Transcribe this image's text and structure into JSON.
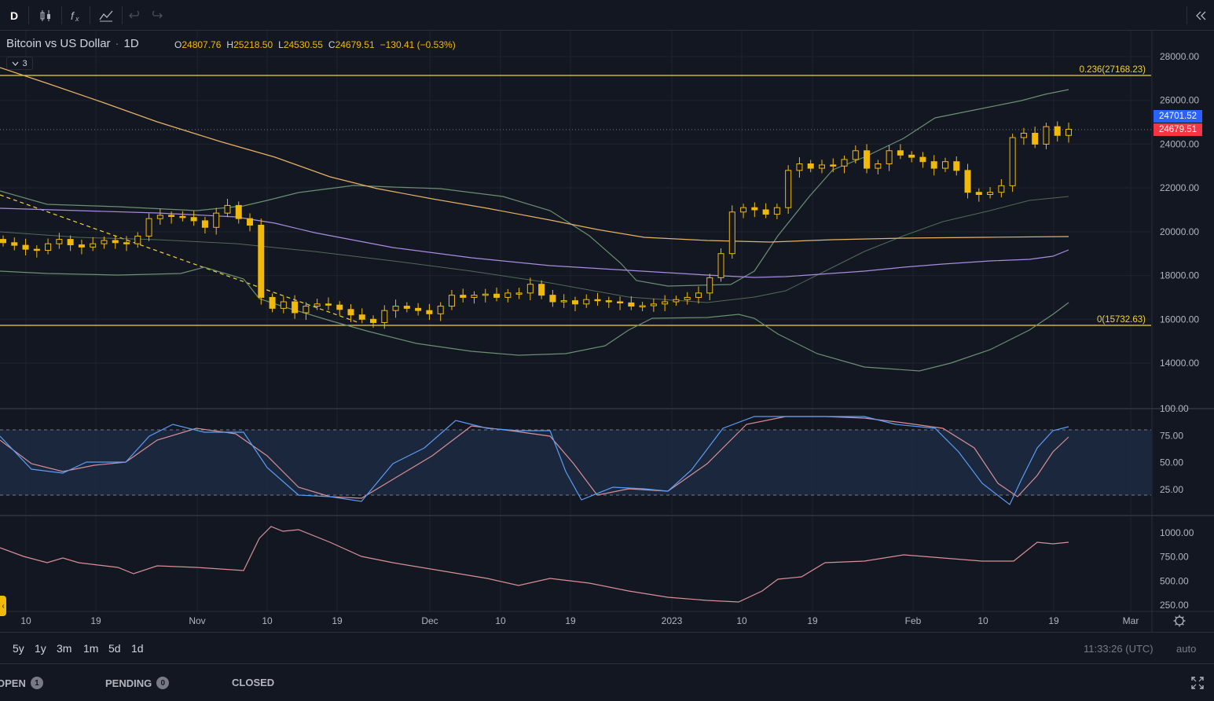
{
  "toolbar": {
    "interval_button": "D",
    "candles_icon": "candlestick-icon",
    "indicators_icon": "fx-icon",
    "templates_icon": "indicator-templates-icon",
    "undo_icon": "undo-icon",
    "redo_icon": "redo-icon",
    "collapse_icon": "double-chevron-left-icon"
  },
  "legend": {
    "symbol": "Bitcoin vs US Dollar",
    "separator": "·",
    "interval": "1D",
    "open_label": "O",
    "open": "24807.76",
    "high_label": "H",
    "high": "25218.50",
    "low_label": "L",
    "low": "24530.55",
    "close_label": "C",
    "close": "24679.51",
    "change": "−130.41 (−0.53%)",
    "indicators_count": "3"
  },
  "price_tags": {
    "bid": "24701.52",
    "last": "24679.51",
    "bid_color": "#2962ff",
    "last_color": "#f23645"
  },
  "fib_levels": [
    {
      "label": "0.236(27168.23)",
      "price": 27168.23
    },
    {
      "label": "0(15732.63)",
      "price": 15732.63
    }
  ],
  "axes": {
    "price_ticks": [
      "28000.00",
      "26000.00",
      "24000.00",
      "22000.00",
      "20000.00",
      "18000.00",
      "16000.00",
      "14000.00"
    ],
    "stoch_ticks": [
      "100.00",
      "75.00",
      "50.00",
      "25.00"
    ],
    "volume_ticks": [
      "1000.00",
      "750.00",
      "500.00",
      "250.00"
    ],
    "time_ticks": [
      "10",
      "19",
      "Nov",
      "10",
      "19",
      "Dec",
      "10",
      "19",
      "2023",
      "10",
      "19",
      "Feb",
      "10",
      "19",
      "Mar"
    ]
  },
  "chart_data": {
    "type": "candlestick",
    "symbol": "Bitcoin vs US Dollar",
    "interval": "1D",
    "price_range": [
      12800,
      28900
    ],
    "close_series": [
      19500,
      19380,
      19200,
      19150,
      19450,
      19650,
      19400,
      19300,
      19450,
      19600,
      19500,
      19450,
      19800,
      20600,
      20750,
      20700,
      20650,
      20500,
      20200,
      20850,
      21200,
      20600,
      20300,
      17000,
      16500,
      16800,
      16300,
      16600,
      16700,
      16650,
      16450,
      16200,
      16000,
      15850,
      16400,
      16600,
      16500,
      16400,
      16250,
      16600,
      17100,
      17000,
      17100,
      17150,
      17000,
      17200,
      17200,
      17600,
      17100,
      16800,
      16850,
      16700,
      16900,
      16850,
      16800,
      16750,
      16600,
      16620,
      16700,
      16800,
      16900,
      17000,
      17200,
      17900,
      19000,
      20900,
      21100,
      21000,
      20800,
      21100,
      22800,
      23100,
      22900,
      23050,
      23000,
      23300,
      23700,
      22900,
      23100,
      23700,
      23500,
      23400,
      23200,
      22900,
      23200,
      22800,
      21800,
      21700,
      21800,
      22100,
      24300,
      24500,
      24000,
      24800,
      24400,
      24680
    ],
    "stochastic": {
      "upper_band": 80,
      "lower_band": 20,
      "k_last": 83,
      "d_last": 72
    },
    "volume_last": 900
  },
  "bottom_bar": {
    "ranges": [
      "5y",
      "1y",
      "3m",
      "1m",
      "5d",
      "1d"
    ],
    "clock": "11:33:26 (UTC)",
    "scale_mode": "auto",
    "settings_icon": "gear-icon"
  },
  "trade_panel": {
    "tabs": [
      {
        "label": "OPEN",
        "count": "1"
      },
      {
        "label": "PENDING",
        "count": "0"
      },
      {
        "label": "CLOSED",
        "count": ""
      }
    ],
    "expand_icon": "fullscreen-icon"
  },
  "colors": {
    "background": "#131722",
    "candle": "#f0b90b",
    "ma_slow": "#e6b266",
    "ma_purple": "#a98ce0",
    "bollinger": "#6b8f71",
    "stoch_k": "#5b9cf6",
    "stoch_d": "#d98f96",
    "volume_line": "#d98f96"
  }
}
